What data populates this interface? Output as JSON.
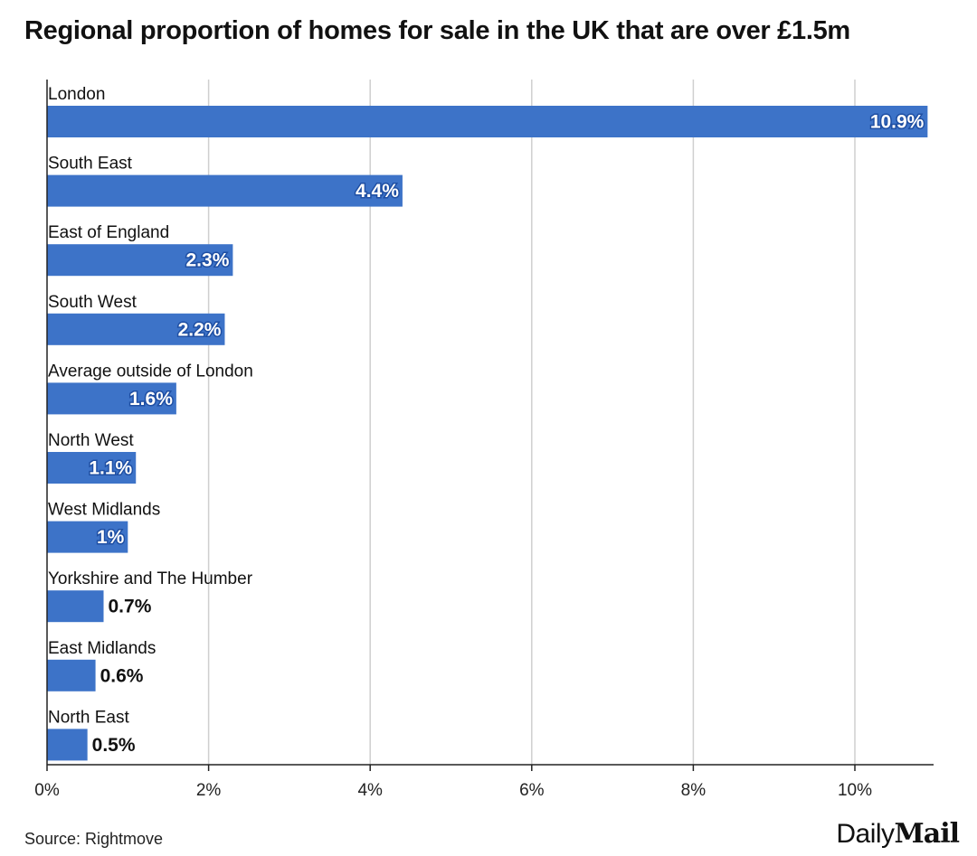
{
  "title": "Regional proportion of homes for sale in the UK that are over £1.5m",
  "source": "Source: Rightmove",
  "logo": {
    "part1": "Daily",
    "part2": "Mail"
  },
  "colors": {
    "bar": "#3d73c8",
    "grid": "#cfcfcf",
    "axis": "#222222",
    "label_text": "#111111",
    "inside_text": "#ffffff"
  },
  "chart_data": {
    "type": "bar",
    "orientation": "horizontal",
    "categories": [
      "London",
      "South East",
      "East of England",
      "South West",
      "Average outside of London",
      "North West",
      "West Midlands",
      "Yorkshire and The Humber",
      "East Midlands",
      "North East"
    ],
    "values": [
      10.9,
      4.4,
      2.3,
      2.2,
      1.6,
      1.1,
      1,
      0.7,
      0.6,
      0.5
    ],
    "data_labels": [
      "10.9%",
      "4.4%",
      "2.3%",
      "2.2%",
      "1.6%",
      "1.1%",
      "1%",
      "0.7%",
      "0.6%",
      "0.5%"
    ],
    "x_ticks": [
      0,
      2,
      4,
      6,
      8,
      10
    ],
    "x_tick_labels": [
      "0%",
      "2%",
      "4%",
      "6%",
      "8%",
      "10%"
    ],
    "xlim": [
      0,
      11
    ],
    "grid": true
  }
}
